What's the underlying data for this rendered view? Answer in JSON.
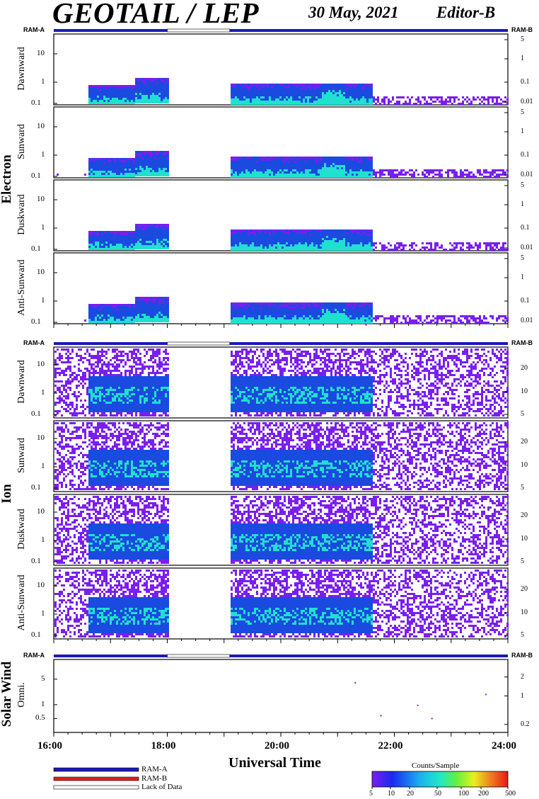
{
  "header": {
    "title": "GEOTAIL / LEP",
    "date": "30 May, 2021",
    "editor": "Editor-B"
  },
  "colors": {
    "ram_a": "#1a1ab8",
    "ram_b": "#e02020",
    "lack_of_data": "#ffffff",
    "spectrogram_low": "#7a1ef0",
    "spectrogram_mid": "#1a4ae0",
    "spectrogram_high": "#20e0d0"
  },
  "chart_data": [
    {
      "type": "heatmap",
      "group": "Electron",
      "panels": [
        {
          "name": "Dawnward",
          "left_ticks": [
            "10",
            "1",
            "0.1"
          ],
          "right_ticks": [
            "5",
            "1",
            "0.1",
            "0.01"
          ]
        },
        {
          "name": "Sunward",
          "left_ticks": [
            "10",
            "1",
            "0.1"
          ],
          "right_ticks": [
            "5",
            "1",
            "0.1",
            "0.01"
          ]
        },
        {
          "name": "Duskward",
          "left_ticks": [
            "10",
            "1",
            "0.1"
          ],
          "right_ticks": [
            "5",
            "1",
            "0.1",
            "0.01"
          ]
        },
        {
          "name": "Anti-Sunward",
          "left_ticks": [
            "10",
            "1",
            "0.1"
          ],
          "right_ticks": [
            "5",
            "1",
            "0.1",
            "0.01"
          ]
        }
      ],
      "ram_labels": [
        "RAM-A",
        "RAM-B"
      ],
      "data_gap_hours": [
        18.0,
        19.1
      ],
      "activity_windows_hours": [
        [
          16.6,
          18.0
        ],
        [
          19.1,
          21.6
        ]
      ]
    },
    {
      "type": "heatmap",
      "group": "Ion",
      "panels": [
        {
          "name": "Dawnward",
          "left_ticks": [
            "10",
            "1",
            "0.1"
          ],
          "right_ticks": [
            "20",
            "10",
            "5"
          ]
        },
        {
          "name": "Sunward",
          "left_ticks": [
            "10",
            "1",
            "0.1"
          ],
          "right_ticks": [
            "20",
            "10",
            "5"
          ]
        },
        {
          "name": "Duskward",
          "left_ticks": [
            "10",
            "1",
            "0.1"
          ],
          "right_ticks": [
            "20",
            "10",
            "5"
          ]
        },
        {
          "name": "Anti-Sunward",
          "left_ticks": [
            "10",
            "1",
            "0.1"
          ],
          "right_ticks": [
            "20",
            "10",
            "5"
          ]
        }
      ],
      "ram_labels": [
        "RAM-A",
        "RAM-B"
      ],
      "data_gap_hours": [
        18.0,
        19.1
      ],
      "activity_windows_hours": [
        [
          16.6,
          18.0
        ],
        [
          19.1,
          21.6
        ]
      ]
    },
    {
      "type": "scatter",
      "group": "Solar Wind",
      "panels": [
        {
          "name": "Omni.",
          "left_ticks": [
            "5",
            "1",
            "0.5"
          ],
          "right_ticks": [
            "2",
            "1",
            "0.2"
          ]
        }
      ],
      "ram_labels": [
        "RAM-A",
        "RAM-B"
      ],
      "points_hours": [
        21.3,
        21.75,
        22.4,
        22.65,
        23.6
      ]
    }
  ],
  "xaxis": {
    "label": "Universal Time",
    "ticks": [
      "16:00",
      "18:00",
      "20:00",
      "22:00",
      "24:00"
    ],
    "range_hours": [
      16,
      24
    ]
  },
  "legend": {
    "ram_a": "RAM-A",
    "ram_b": "RAM-B",
    "lack_of_data": "Lack of Data"
  },
  "colorbar": {
    "title": "Counts/Sample",
    "ticks": [
      "5",
      "10",
      "20",
      "50",
      "100",
      "200",
      "500"
    ]
  }
}
